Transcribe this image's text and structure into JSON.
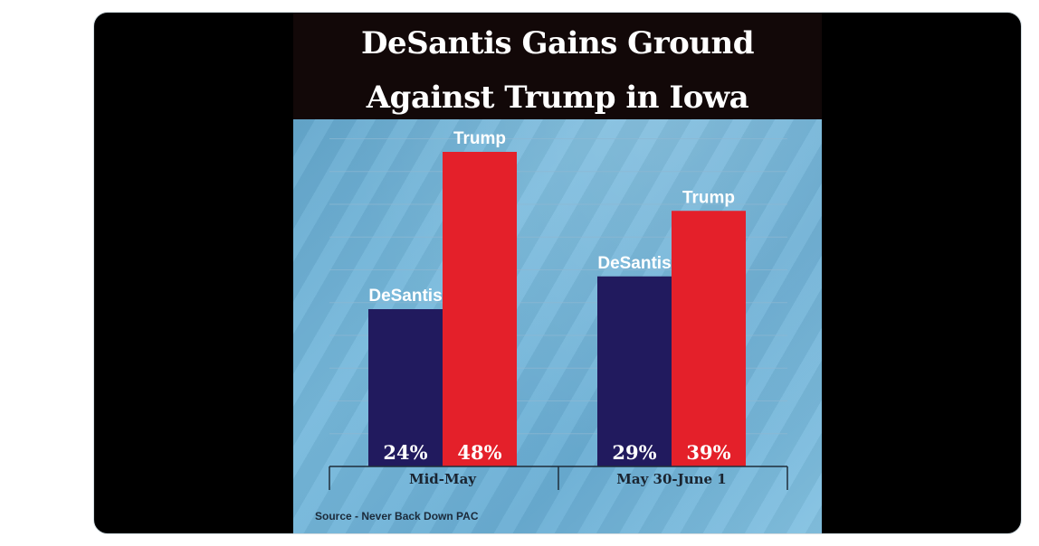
{
  "colors": {
    "desantis": "#211a5e",
    "trump": "#e4202a",
    "title_band": "#120808",
    "gridline": "#8fb8d2",
    "axis": "#1f2d3a"
  },
  "chart_data": {
    "type": "bar",
    "title": "DeSantis Gains Ground Against Trump in Iowa",
    "categories": [
      "Mid-May",
      "May 30-June 1"
    ],
    "series": [
      {
        "name": "DeSantis",
        "values": [
          24,
          29
        ],
        "value_labels": [
          "24%",
          "29%"
        ]
      },
      {
        "name": "Trump",
        "values": [
          48,
          39
        ],
        "value_labels": [
          "48%",
          "39%"
        ]
      }
    ],
    "ylim": [
      0,
      50
    ],
    "grid": true,
    "legend": "none",
    "xlabel": "",
    "ylabel": "",
    "source": "Source - Never Back Down PAC"
  }
}
